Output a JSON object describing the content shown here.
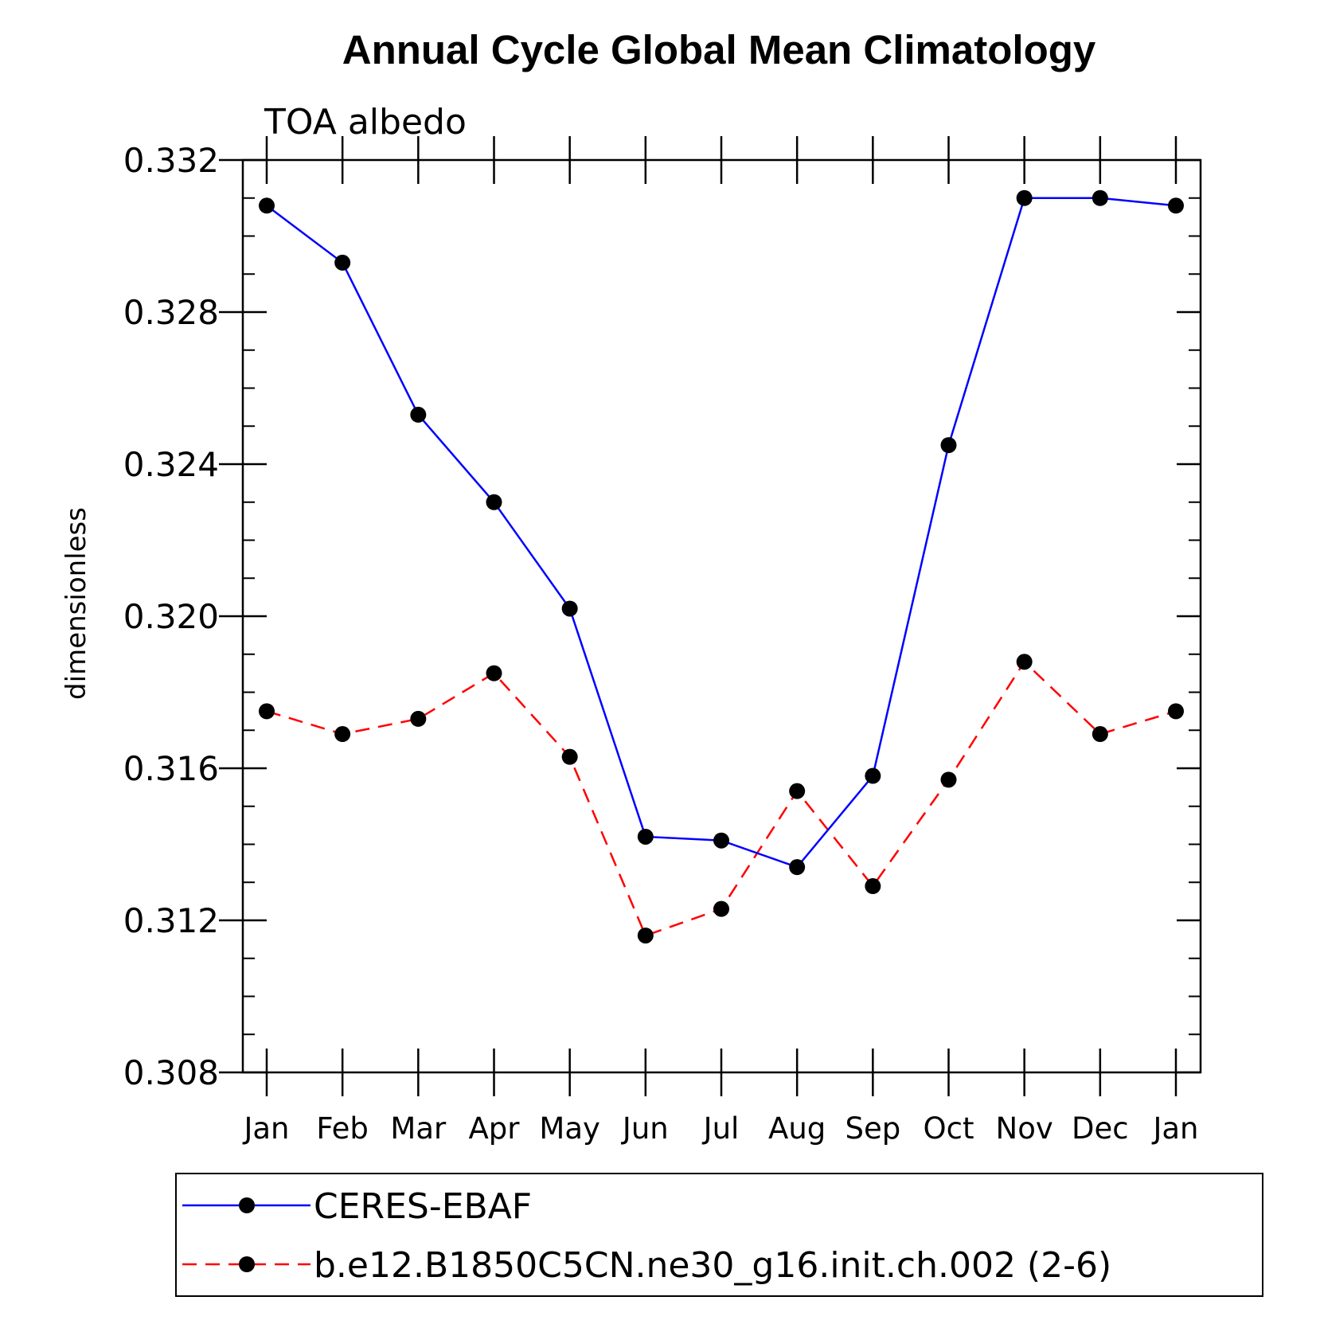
{
  "chart_data": {
    "type": "line",
    "title": "Annual Cycle Global Mean Climatology",
    "subtitle": "TOA albedo",
    "xlabel": "",
    "ylabel": "dimensionless",
    "categories": [
      "Jan",
      "Feb",
      "Mar",
      "Apr",
      "May",
      "Jun",
      "Jul",
      "Aug",
      "Sep",
      "Oct",
      "Nov",
      "Dec",
      "Jan"
    ],
    "ylim": [
      0.308,
      0.332
    ],
    "yticks": [
      0.308,
      0.312,
      0.316,
      0.32,
      0.324,
      0.328,
      0.332
    ],
    "ytick_labels": [
      "0.308",
      "0.312",
      "0.316",
      "0.320",
      "0.324",
      "0.328",
      "0.332"
    ],
    "series": [
      {
        "name": "CERES-EBAF",
        "color": "#0000ff",
        "dash": "solid",
        "values": [
          0.3308,
          0.3293,
          0.3253,
          0.323,
          0.3202,
          0.3142,
          0.3141,
          0.3134,
          0.3158,
          0.3245,
          0.331,
          0.331,
          0.3308
        ]
      },
      {
        "name": "b.e12.B1850C5CN.ne30_g16.init.ch.002 (2-6)",
        "color": "#ff0000",
        "dash": "dashed",
        "values": [
          0.3175,
          0.3169,
          0.3173,
          0.3185,
          0.3163,
          0.3116,
          0.3123,
          0.3154,
          0.3129,
          0.3157,
          0.3188,
          0.3169,
          0.3175
        ]
      }
    ],
    "marker_color": "#000000",
    "legend_placement": "bottom"
  }
}
